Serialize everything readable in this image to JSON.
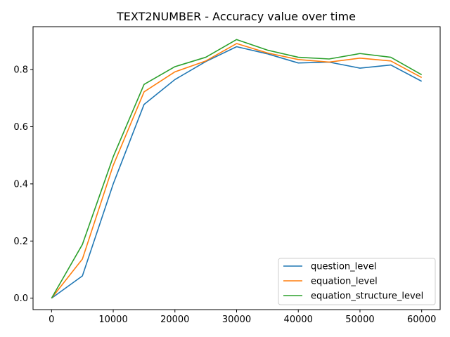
{
  "chart_data": {
    "type": "line",
    "title": "TEXT2NUMBER - Accuracy value over time",
    "xlabel": "",
    "ylabel": "",
    "x": [
      0,
      5000,
      10000,
      15000,
      20000,
      25000,
      30000,
      35000,
      40000,
      45000,
      50000,
      55000,
      60000
    ],
    "xlim": [
      -3000,
      63000
    ],
    "ylim": [
      -0.04,
      0.95
    ],
    "xticks": [
      0,
      10000,
      20000,
      30000,
      40000,
      50000,
      60000
    ],
    "xtick_labels": [
      "0",
      "10000",
      "20000",
      "30000",
      "40000",
      "50000",
      "60000"
    ],
    "yticks": [
      0.0,
      0.2,
      0.4,
      0.6,
      0.8
    ],
    "ytick_labels": [
      "0.0",
      "0.2",
      "0.4",
      "0.6",
      "0.8"
    ],
    "grid": false,
    "legend_position": "lower-right",
    "series": [
      {
        "name": "question_level",
        "color": "#1f77b4",
        "values": [
          0.0,
          0.078,
          0.4,
          0.678,
          0.765,
          0.828,
          0.88,
          0.855,
          0.823,
          0.826,
          0.805,
          0.816,
          0.759
        ]
      },
      {
        "name": "equation_level",
        "color": "#ff7f0e",
        "values": [
          0.0,
          0.137,
          0.465,
          0.722,
          0.792,
          0.83,
          0.891,
          0.858,
          0.835,
          0.826,
          0.84,
          0.83,
          0.772
        ]
      },
      {
        "name": "equation_structure_level",
        "color": "#2ca02c",
        "values": [
          0.0,
          0.188,
          0.495,
          0.748,
          0.81,
          0.843,
          0.905,
          0.868,
          0.843,
          0.837,
          0.856,
          0.843,
          0.782
        ]
      }
    ]
  }
}
